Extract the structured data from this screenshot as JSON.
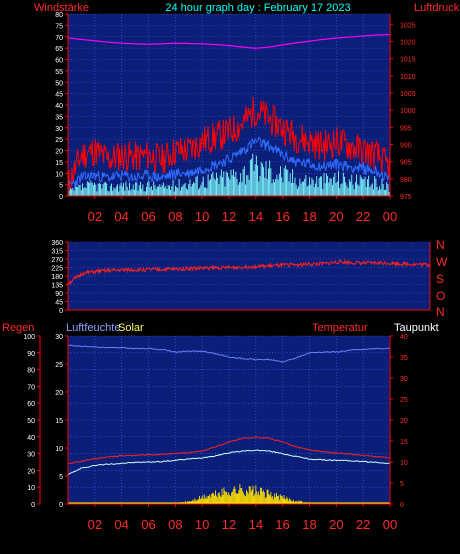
{
  "header": {
    "title": "24 hour graph day : February 17 2023",
    "left_label": "Windstärke",
    "right_label": "Luftdruck"
  },
  "panel2": {
    "dir_labels": [
      "N",
      "W",
      "S",
      "O",
      "N"
    ]
  },
  "panel3": {
    "labels": {
      "regen": "Regen",
      "luftfeuchte": "Luftfeuchte",
      "solar": "Solar",
      "temperatur": "Temperatur",
      "taupunkt": "Taupunkt"
    }
  },
  "colors": {
    "plot_bg": "#0b1f78",
    "grid": "#3a5fff",
    "axis_red": "#ff0000",
    "label_red": "#ff2a2a",
    "pressure": "#ff00ff",
    "gust": "#ff0000",
    "wind": "#2f6cff",
    "wind_min": "#80ffff",
    "direction": "#ff2020",
    "humidity": "#6a80ff",
    "temperature": "#ff2020",
    "dewpoint": "#cfffff",
    "solar": "#ffe000",
    "rain": "#ffff00"
  },
  "chart_data": [
    {
      "type": "line",
      "id": "wind_pressure",
      "x_tick_labels": [
        "02",
        "04",
        "06",
        "08",
        "10",
        "12",
        "14",
        "16",
        "18",
        "20",
        "22",
        "00"
      ],
      "ylim_left": [
        0,
        80
      ],
      "y_ticks_left": [
        0,
        5,
        10,
        15,
        20,
        25,
        30,
        35,
        40,
        45,
        50,
        55,
        60,
        65,
        70,
        75,
        80
      ],
      "ylim_right": [
        975,
        1028
      ],
      "y_ticks_right": [
        975,
        980,
        985,
        990,
        995,
        1000,
        1005,
        1010,
        1015,
        1020,
        1025
      ],
      "grid": true,
      "hours": [
        0,
        1,
        2,
        3,
        4,
        5,
        6,
        7,
        8,
        9,
        10,
        11,
        12,
        13,
        14,
        15,
        16,
        17,
        18,
        19,
        20,
        21,
        22,
        23,
        24
      ],
      "series": [
        {
          "key": "gust",
          "values": [
            5,
            18,
            20,
            16,
            18,
            17,
            18,
            16,
            20,
            20,
            24,
            26,
            28,
            32,
            38,
            34,
            30,
            26,
            24,
            22,
            24,
            22,
            20,
            18,
            12
          ]
        },
        {
          "key": "wind",
          "values": [
            4,
            8,
            9,
            8,
            9,
            8,
            9,
            8,
            10,
            10,
            12,
            14,
            16,
            20,
            24,
            22,
            18,
            15,
            14,
            13,
            14,
            13,
            12,
            11,
            7
          ]
        },
        {
          "key": "wind_min",
          "values": [
            2,
            4,
            5,
            4,
            5,
            4,
            5,
            4,
            5,
            6,
            7,
            8,
            9,
            11,
            13,
            12,
            10,
            8,
            7,
            7,
            8,
            7,
            6,
            6,
            4
          ]
        },
        {
          "key": "pressure",
          "values": [
            1021.0,
            1020.6,
            1020.2,
            1019.8,
            1019.5,
            1019.3,
            1019.2,
            1019.3,
            1019.5,
            1019.4,
            1019.3,
            1019.1,
            1018.8,
            1018.4,
            1018.0,
            1018.4,
            1019.0,
            1019.6,
            1020.1,
            1020.6,
            1021.0,
            1021.3,
            1021.6,
            1021.9,
            1022.0
          ]
        }
      ]
    },
    {
      "type": "line",
      "id": "wind_direction",
      "x_tick_labels": [],
      "ylim": [
        0,
        360
      ],
      "y_ticks": [
        0,
        45,
        90,
        135,
        180,
        225,
        270,
        315,
        360
      ],
      "grid": true,
      "hours": [
        0,
        1,
        2,
        3,
        4,
        5,
        6,
        7,
        8,
        9,
        10,
        11,
        12,
        13,
        14,
        15,
        16,
        17,
        18,
        19,
        20,
        21,
        22,
        23,
        24
      ],
      "series": [
        {
          "key": "direction",
          "values": [
            140,
            195,
            205,
            210,
            212,
            213,
            215,
            216,
            220,
            222,
            224,
            225,
            230,
            232,
            236,
            240,
            242,
            245,
            255,
            250,
            248,
            250,
            245,
            242,
            240
          ]
        }
      ]
    },
    {
      "type": "line",
      "id": "humidity_temp_solar",
      "x_tick_labels": [
        "02",
        "04",
        "06",
        "08",
        "10",
        "12",
        "14",
        "16",
        "18",
        "20",
        "22",
        "00"
      ],
      "ylim_left": [
        0,
        100
      ],
      "y_ticks_left": [
        0,
        10,
        20,
        30,
        40,
        50,
        60,
        70,
        80,
        90,
        100
      ],
      "ylim_humidity": [
        0,
        30
      ],
      "y_ticks_humidity": [
        0,
        5,
        10,
        15,
        20,
        25,
        30
      ],
      "ylim_right": [
        0,
        40
      ],
      "y_ticks_right": [
        0,
        5,
        10,
        15,
        20,
        25,
        30,
        35,
        40
      ],
      "grid": true,
      "hours": [
        0,
        1,
        2,
        3,
        4,
        5,
        6,
        7,
        8,
        9,
        10,
        11,
        12,
        13,
        14,
        15,
        16,
        17,
        18,
        19,
        20,
        21,
        22,
        23,
        24
      ],
      "series": [
        {
          "key": "humidity",
          "values": [
            94.5,
            94,
            93.5,
            93,
            93,
            92.5,
            92.5,
            92,
            90.5,
            91,
            91,
            89.5,
            87.5,
            86.5,
            86,
            86,
            84.5,
            87,
            90,
            90.5,
            90.5,
            91.5,
            92,
            92.5,
            92.5
          ]
        },
        {
          "key": "temperature",
          "values": [
            9.5,
            10.2,
            10.8,
            11.2,
            11.5,
            11.6,
            11.7,
            11.8,
            12,
            12.2,
            12.6,
            13.6,
            14.8,
            15.6,
            15.9,
            15.6,
            14.8,
            13.6,
            12.9,
            12.4,
            12.1,
            11.9,
            11.6,
            11.3,
            11
          ]
        },
        {
          "key": "dewpoint",
          "values": [
            7,
            8.5,
            9.2,
            9.5,
            9.7,
            9.9,
            10,
            10.1,
            10.4,
            10.7,
            11,
            11.5,
            12.2,
            12.6,
            12.8,
            12.6,
            12,
            11.3,
            10.7,
            10.5,
            10.4,
            10.3,
            10.1,
            9.9,
            9.7
          ]
        },
        {
          "key": "solar",
          "values": [
            0,
            0,
            0,
            0,
            0,
            0,
            0,
            0.2,
            0.5,
            1.5,
            4,
            6,
            8,
            9,
            8,
            6,
            4,
            2,
            0.5,
            0,
            0,
            0,
            0,
            0,
            0
          ]
        },
        {
          "key": "rain",
          "values": [
            0.3,
            0.3,
            0.3,
            0.3,
            0.3,
            0.3,
            0.3,
            0.3,
            0.3,
            0.3,
            0.3,
            0.3,
            0.3,
            0.3,
            0.3,
            0.3,
            0.3,
            0.3,
            0.3,
            0.3,
            0.3,
            0.3,
            0.3,
            0.3,
            0.3
          ]
        }
      ]
    }
  ]
}
